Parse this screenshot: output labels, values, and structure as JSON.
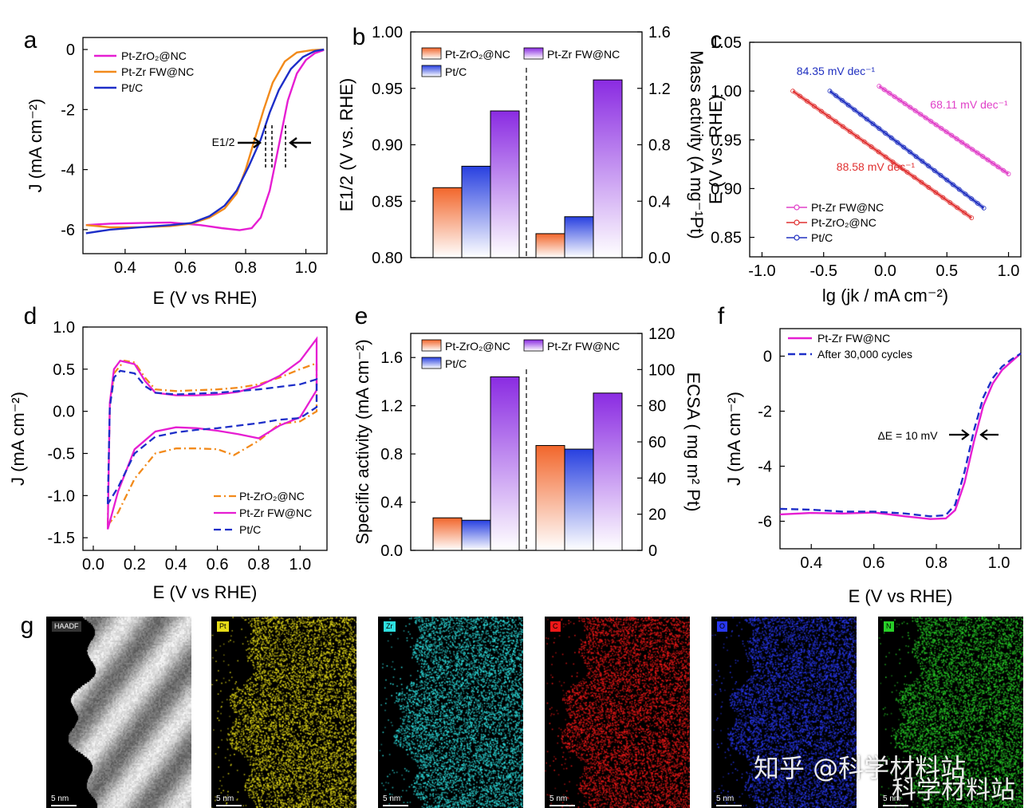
{
  "panels": {
    "a": "a",
    "b": "b",
    "c": "c",
    "d": "d",
    "e": "e",
    "f": "f",
    "g": "g"
  },
  "chart_data": [
    {
      "id": "a",
      "type": "line",
      "xlabel": "E (V vs RHE)",
      "ylabel": "J (mA cm⁻²)",
      "xlim": [
        0.26,
        1.07
      ],
      "ylim": [
        -6.8,
        0.4
      ],
      "xticks": [
        0.4,
        0.6,
        0.8,
        1.0
      ],
      "yticks": [
        0,
        -2,
        -4,
        -6
      ],
      "annotation": "E1/2",
      "series": [
        {
          "name": "Pt-ZrO₂@NC",
          "color": "#e61ed2",
          "points": [
            [
              0.27,
              -5.85
            ],
            [
              0.35,
              -5.8
            ],
            [
              0.45,
              -5.78
            ],
            [
              0.55,
              -5.76
            ],
            [
              0.65,
              -5.85
            ],
            [
              0.72,
              -5.95
            ],
            [
              0.78,
              -6.02
            ],
            [
              0.82,
              -5.95
            ],
            [
              0.85,
              -5.6
            ],
            [
              0.88,
              -4.7
            ],
            [
              0.91,
              -3.2
            ],
            [
              0.94,
              -1.7
            ],
            [
              0.97,
              -0.8
            ],
            [
              1.0,
              -0.35
            ],
            [
              1.03,
              -0.12
            ],
            [
              1.06,
              -0.02
            ]
          ]
        },
        {
          "name": "Pt-Zr FW@NC",
          "color": "#f28a1b",
          "points": [
            [
              0.27,
              -5.85
            ],
            [
              0.35,
              -5.92
            ],
            [
              0.45,
              -5.92
            ],
            [
              0.55,
              -5.88
            ],
            [
              0.62,
              -5.8
            ],
            [
              0.68,
              -5.6
            ],
            [
              0.73,
              -5.3
            ],
            [
              0.77,
              -4.8
            ],
            [
              0.8,
              -4.0
            ],
            [
              0.83,
              -3.0
            ],
            [
              0.86,
              -2.0
            ],
            [
              0.89,
              -1.1
            ],
            [
              0.93,
              -0.4
            ],
            [
              0.97,
              -0.1
            ],
            [
              1.02,
              -0.02
            ],
            [
              1.06,
              0.0
            ]
          ]
        },
        {
          "name": "Pt/C",
          "color": "#1d2ec8",
          "points": [
            [
              0.27,
              -6.12
            ],
            [
              0.35,
              -6.0
            ],
            [
              0.45,
              -5.92
            ],
            [
              0.55,
              -5.85
            ],
            [
              0.62,
              -5.78
            ],
            [
              0.68,
              -5.55
            ],
            [
              0.73,
              -5.2
            ],
            [
              0.77,
              -4.7
            ],
            [
              0.81,
              -3.9
            ],
            [
              0.85,
              -3.0
            ],
            [
              0.88,
              -2.1
            ],
            [
              0.91,
              -1.35
            ],
            [
              0.95,
              -0.65
            ],
            [
              0.99,
              -0.25
            ],
            [
              1.03,
              -0.05
            ],
            [
              1.06,
              0.0
            ]
          ]
        }
      ]
    },
    {
      "id": "b",
      "type": "bar",
      "ylabel_left": "E1/2 (V vs. RHE)",
      "ylabel_right": "Mass activity (A mg⁻¹Pt)",
      "ylim_left": [
        0.8,
        1.0
      ],
      "ylim_right": [
        0,
        1.6
      ],
      "yticks_left": [
        0.8,
        0.85,
        0.9,
        0.95,
        1.0
      ],
      "yticks_right": [
        0.0,
        0.4,
        0.8,
        1.2,
        1.6
      ],
      "legend": [
        "Pt-ZrO₂@NC",
        "Pt-Zr FW@NC",
        "Pt/C"
      ],
      "series": [
        {
          "name": "Pt-ZrO₂@NC",
          "color": "#f2662b",
          "left": 0.862,
          "right": 0.17
        },
        {
          "name": "Pt/C",
          "color": "#2840e0",
          "left": 0.881,
          "right": 0.29
        },
        {
          "name": "Pt-Zr FW@NC",
          "color": "#8a2be2",
          "left": 0.93,
          "right": 1.26
        }
      ]
    },
    {
      "id": "c",
      "type": "line",
      "xlabel": "lg (jk / mA cm⁻²)",
      "ylabel": "E (V vs. RHE)",
      "xlim": [
        -1.1,
        1.1
      ],
      "ylim": [
        0.83,
        1.05
      ],
      "xticks": [
        -1.0,
        -0.5,
        0.0,
        0.5,
        1.0
      ],
      "yticks": [
        0.85,
        0.9,
        0.95,
        1.0,
        1.05
      ],
      "series": [
        {
          "name": "Pt-Zr FW@NC",
          "color": "#e040c8",
          "tafel": "68.11 mV dec⁻¹",
          "points": [
            [
              -0.05,
              1.005
            ],
            [
              1.0,
              0.915
            ]
          ]
        },
        {
          "name": "Pt-ZrO₂@NC",
          "color": "#e03030",
          "tafel": "88.58 mV dec⁻¹",
          "points": [
            [
              -0.75,
              1.0
            ],
            [
              0.7,
              0.87
            ]
          ]
        },
        {
          "name": "Pt/C",
          "color": "#2030c0",
          "tafel": "84.35 mV dec⁻¹",
          "points": [
            [
              -0.45,
              1.0
            ],
            [
              0.8,
              0.88
            ]
          ]
        }
      ]
    },
    {
      "id": "d",
      "type": "line",
      "xlabel": "E (V vs RHE)",
      "ylabel": "J (mA cm⁻²)",
      "xlim": [
        -0.05,
        1.13
      ],
      "ylim": [
        -1.65,
        1.0
      ],
      "xticks": [
        0.0,
        0.2,
        0.4,
        0.6,
        0.8,
        1.0
      ],
      "yticks": [
        1.0,
        0.5,
        0.0,
        -0.5,
        -1.0,
        -1.5
      ],
      "series": [
        {
          "name": "Pt-ZrO₂@NC",
          "color": "#f28a1b",
          "dash": "dashdot",
          "points": [
            [
              0.07,
              -1.35
            ],
            [
              0.08,
              0.05
            ],
            [
              0.1,
              0.45
            ],
            [
              0.15,
              0.6
            ],
            [
              0.2,
              0.58
            ],
            [
              0.25,
              0.4
            ],
            [
              0.3,
              0.26
            ],
            [
              0.4,
              0.24
            ],
            [
              0.5,
              0.25
            ],
            [
              0.6,
              0.26
            ],
            [
              0.7,
              0.28
            ],
            [
              0.8,
              0.32
            ],
            [
              0.9,
              0.4
            ],
            [
              1.0,
              0.5
            ],
            [
              1.08,
              0.57
            ],
            [
              1.08,
              0.0
            ],
            [
              1.0,
              -0.12
            ],
            [
              0.9,
              -0.15
            ],
            [
              0.8,
              -0.35
            ],
            [
              0.68,
              -0.52
            ],
            [
              0.6,
              -0.45
            ],
            [
              0.5,
              -0.44
            ],
            [
              0.4,
              -0.44
            ],
            [
              0.3,
              -0.5
            ],
            [
              0.2,
              -0.8
            ],
            [
              0.12,
              -1.2
            ],
            [
              0.07,
              -1.35
            ]
          ]
        },
        {
          "name": "Pt-Zr FW@NC",
          "color": "#e61ed2",
          "dash": "solid",
          "points": [
            [
              0.07,
              -1.4
            ],
            [
              0.08,
              0.1
            ],
            [
              0.1,
              0.5
            ],
            [
              0.13,
              0.6
            ],
            [
              0.2,
              0.56
            ],
            [
              0.25,
              0.36
            ],
            [
              0.3,
              0.22
            ],
            [
              0.4,
              0.19
            ],
            [
              0.5,
              0.19
            ],
            [
              0.6,
              0.2
            ],
            [
              0.7,
              0.23
            ],
            [
              0.8,
              0.3
            ],
            [
              0.9,
              0.42
            ],
            [
              1.0,
              0.6
            ],
            [
              1.08,
              0.86
            ],
            [
              1.08,
              0.25
            ],
            [
              1.0,
              -0.07
            ],
            [
              0.9,
              -0.17
            ],
            [
              0.8,
              -0.32
            ],
            [
              0.7,
              -0.27
            ],
            [
              0.6,
              -0.23
            ],
            [
              0.5,
              -0.2
            ],
            [
              0.4,
              -0.19
            ],
            [
              0.3,
              -0.24
            ],
            [
              0.2,
              -0.45
            ],
            [
              0.12,
              -0.95
            ],
            [
              0.07,
              -1.4
            ]
          ]
        },
        {
          "name": "Pt/C",
          "color": "#1d2ec8",
          "dash": "dashed",
          "points": [
            [
              0.07,
              -1.1
            ],
            [
              0.08,
              0.05
            ],
            [
              0.1,
              0.4
            ],
            [
              0.13,
              0.48
            ],
            [
              0.2,
              0.45
            ],
            [
              0.25,
              0.3
            ],
            [
              0.3,
              0.22
            ],
            [
              0.4,
              0.2
            ],
            [
              0.5,
              0.21
            ],
            [
              0.6,
              0.22
            ],
            [
              0.7,
              0.24
            ],
            [
              0.8,
              0.26
            ],
            [
              0.9,
              0.29
            ],
            [
              1.0,
              0.32
            ],
            [
              1.08,
              0.38
            ],
            [
              1.08,
              0.05
            ],
            [
              1.0,
              -0.08
            ],
            [
              0.9,
              -0.1
            ],
            [
              0.8,
              -0.14
            ],
            [
              0.7,
              -0.17
            ],
            [
              0.6,
              -0.2
            ],
            [
              0.5,
              -0.22
            ],
            [
              0.4,
              -0.25
            ],
            [
              0.3,
              -0.3
            ],
            [
              0.2,
              -0.5
            ],
            [
              0.12,
              -0.9
            ],
            [
              0.07,
              -1.1
            ]
          ]
        }
      ]
    },
    {
      "id": "e",
      "type": "bar",
      "ylabel_left": "Specific activity (mA cm⁻²)",
      "ylabel_right": "ECSA ( mg m² Pt)",
      "ylim_left": [
        0,
        1.8
      ],
      "ylim_right": [
        0,
        120
      ],
      "yticks_left": [
        0.0,
        0.4,
        0.8,
        1.2,
        1.6
      ],
      "yticks_right": [
        0,
        20,
        40,
        60,
        80,
        100,
        120
      ],
      "legend": [
        "Pt-ZrO₂@NC",
        "Pt-Zr FW@NC",
        "Pt/C"
      ],
      "series": [
        {
          "name": "Pt-ZrO₂@NC",
          "color": "#f2662b",
          "left": 0.27,
          "right": 58
        },
        {
          "name": "Pt/C",
          "color": "#2840e0",
          "left": 0.25,
          "right": 56
        },
        {
          "name": "Pt-Zr FW@NC",
          "color": "#8a2be2",
          "left": 1.44,
          "right": 87
        }
      ]
    },
    {
      "id": "f",
      "type": "line",
      "xlabel": "E (V vs RHE)",
      "ylabel": "J (mA cm⁻²)",
      "xlim": [
        0.3,
        1.07
      ],
      "ylim": [
        -7.0,
        1.0
      ],
      "xticks": [
        0.4,
        0.6,
        0.8,
        1.0
      ],
      "yticks": [
        0,
        -2,
        -4,
        -6
      ],
      "annotation": "ΔE = 10 mV",
      "series": [
        {
          "name": "Pt-Zr FW@NC",
          "color": "#e61ed2",
          "dash": "solid",
          "points": [
            [
              0.3,
              -5.75
            ],
            [
              0.4,
              -5.7
            ],
            [
              0.5,
              -5.72
            ],
            [
              0.6,
              -5.68
            ],
            [
              0.7,
              -5.82
            ],
            [
              0.78,
              -5.92
            ],
            [
              0.83,
              -5.9
            ],
            [
              0.86,
              -5.6
            ],
            [
              0.89,
              -4.6
            ],
            [
              0.92,
              -3.1
            ],
            [
              0.95,
              -1.8
            ],
            [
              0.98,
              -1.0
            ],
            [
              1.01,
              -0.5
            ],
            [
              1.04,
              -0.2
            ],
            [
              1.07,
              0.1
            ]
          ]
        },
        {
          "name": "After 30,000 cycles",
          "color": "#1d2ec8",
          "dash": "dashed",
          "points": [
            [
              0.3,
              -5.55
            ],
            [
              0.4,
              -5.58
            ],
            [
              0.5,
              -5.65
            ],
            [
              0.6,
              -5.65
            ],
            [
              0.7,
              -5.72
            ],
            [
              0.78,
              -5.82
            ],
            [
              0.83,
              -5.78
            ],
            [
              0.86,
              -5.4
            ],
            [
              0.89,
              -4.2
            ],
            [
              0.92,
              -2.7
            ],
            [
              0.95,
              -1.5
            ],
            [
              0.98,
              -0.8
            ],
            [
              1.01,
              -0.38
            ],
            [
              1.04,
              -0.12
            ],
            [
              1.07,
              0.1
            ]
          ]
        }
      ]
    }
  ],
  "maps": [
    {
      "tag": "HAADF",
      "tint": "#cfcfcf",
      "scale": "5 nm",
      "kind": "haadf"
    },
    {
      "tag": "Pt",
      "tint": "#e6dc18",
      "scale": "5 nm",
      "kind": "dots"
    },
    {
      "tag": "Zr",
      "tint": "#2ee0e0",
      "scale": "5 nm",
      "kind": "dots"
    },
    {
      "tag": "C",
      "tint": "#f01818",
      "scale": "5 nm",
      "kind": "dots"
    },
    {
      "tag": "O",
      "tint": "#2838f0",
      "scale": "5 nm",
      "kind": "dots"
    },
    {
      "tag": "N",
      "tint": "#28d028",
      "scale": "5 nm",
      "kind": "dots"
    }
  ],
  "watermark": {
    "line1": "知乎 @科学材料站",
    "line2": "科学材料站"
  }
}
